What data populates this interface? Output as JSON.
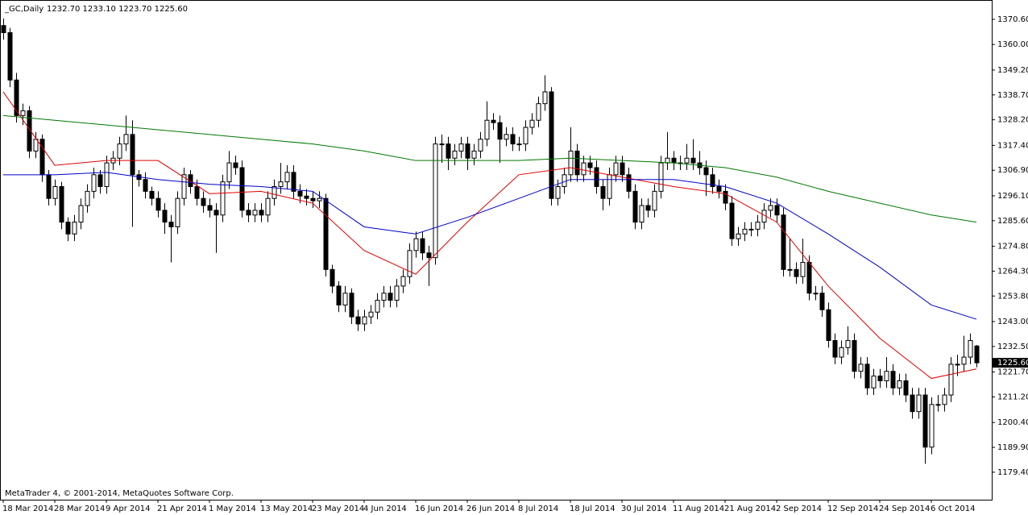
{
  "chart_data": {
    "type": "candlestick",
    "title": "_GC,Daily",
    "ohlc_label": "1232.70 1233.10 1223.70 1225.60",
    "footer": "MetaTrader 4, © 2001-2014, MetaQuotes Software Corp.",
    "last_price_label": "1225.60",
    "ylim": [
      1167.8,
      1378.1
    ],
    "yticks": [
      {
        "value": 1370.6,
        "label": "1370.60"
      },
      {
        "value": 1360.0,
        "label": "1360.00"
      },
      {
        "value": 1349.2,
        "label": "1349.20"
      },
      {
        "value": 1338.7,
        "label": "1338.70"
      },
      {
        "value": 1328.2,
        "label": "1328.20"
      },
      {
        "value": 1317.4,
        "label": "1317.40"
      },
      {
        "value": 1306.9,
        "label": "1306.90"
      },
      {
        "value": 1296.1,
        "label": "1296.10"
      },
      {
        "value": 1285.6,
        "label": "1285.60"
      },
      {
        "value": 1274.8,
        "label": "1274.80"
      },
      {
        "value": 1264.3,
        "label": "1264.30"
      },
      {
        "value": 1253.8,
        "label": "1253.80"
      },
      {
        "value": 1243.0,
        "label": "1243.00"
      },
      {
        "value": 1232.5,
        "label": "1232.50"
      },
      {
        "value": 1221.7,
        "label": "1221.70"
      },
      {
        "value": 1211.2,
        "label": "1211.20"
      },
      {
        "value": 1200.4,
        "label": "1200.40"
      },
      {
        "value": 1189.9,
        "label": "1189.90"
      },
      {
        "value": 1179.4,
        "label": "1179.40"
      }
    ],
    "categories": [
      "18 Mar 2014",
      null,
      null,
      null,
      null,
      null,
      null,
      null,
      "28 Mar 2014",
      null,
      null,
      null,
      null,
      null,
      null,
      null,
      "9 Apr 2014",
      null,
      null,
      null,
      null,
      null,
      null,
      null,
      "21 Apr 2014",
      null,
      null,
      null,
      null,
      null,
      null,
      null,
      "1 May 2014",
      null,
      null,
      null,
      null,
      null,
      null,
      null,
      "13 May 2014",
      null,
      null,
      null,
      null,
      null,
      null,
      null,
      "23 May 2014",
      null,
      null,
      null,
      null,
      null,
      null,
      null,
      "4 Jun 2014",
      null,
      null,
      null,
      null,
      null,
      null,
      null,
      "16 Jun 2014",
      null,
      null,
      null,
      null,
      null,
      null,
      null,
      "26 Jun 2014",
      null,
      null,
      null,
      null,
      null,
      null,
      null,
      "8 Jul 2014",
      null,
      null,
      null,
      null,
      null,
      null,
      null,
      "18 Jul 2014",
      null,
      null,
      null,
      null,
      null,
      null,
      null,
      "30 Jul 2014",
      null,
      null,
      null,
      null,
      null,
      null,
      null,
      "11 Aug 2014",
      null,
      null,
      null,
      null,
      null,
      null,
      null,
      "21 Aug 2014",
      null,
      null,
      null,
      null,
      null,
      null,
      null,
      "2 Sep 2014",
      null,
      null,
      null,
      null,
      null,
      null,
      null,
      "12 Sep 2014",
      null,
      null,
      null,
      null,
      null,
      null,
      null,
      "24 Sep 2014",
      null,
      null,
      null,
      null,
      null,
      null,
      null,
      "6 Oct 2014",
      null,
      null,
      null,
      null,
      null,
      null,
      null
    ],
    "candles": [
      [
        1368,
        1371,
        1362,
        1365
      ],
      [
        1365,
        1367,
        1342,
        1345
      ],
      [
        1345,
        1348,
        1327,
        1330
      ],
      [
        1330,
        1335,
        1326,
        1332
      ],
      [
        1332,
        1334,
        1312,
        1315
      ],
      [
        1315,
        1323,
        1312,
        1320
      ],
      [
        1320,
        1322,
        1302,
        1305
      ],
      [
        1305,
        1307,
        1292,
        1295
      ],
      [
        1295,
        1303,
        1292,
        1300
      ],
      [
        1300,
        1302,
        1282,
        1285
      ],
      [
        1285,
        1287,
        1277,
        1280
      ],
      [
        1280,
        1288,
        1277,
        1285
      ],
      [
        1285,
        1295,
        1282,
        1292
      ],
      [
        1292,
        1301,
        1289,
        1298
      ],
      [
        1298,
        1308,
        1295,
        1305
      ],
      [
        1305,
        1307,
        1297,
        1300
      ],
      [
        1300,
        1313,
        1297,
        1310
      ],
      [
        1310,
        1315,
        1307,
        1312
      ],
      [
        1312,
        1321,
        1309,
        1318
      ],
      [
        1318,
        1330,
        1315,
        1322
      ],
      [
        1322,
        1328,
        1283,
        1305
      ],
      [
        1305,
        1307,
        1300,
        1303
      ],
      [
        1303,
        1306,
        1295,
        1298
      ],
      [
        1298,
        1300,
        1292,
        1295
      ],
      [
        1295,
        1298,
        1287,
        1290
      ],
      [
        1290,
        1293,
        1280,
        1285
      ],
      [
        1285,
        1288,
        1268,
        1283
      ],
      [
        1283,
        1298,
        1280,
        1295
      ],
      [
        1295,
        1308,
        1292,
        1305
      ],
      [
        1305,
        1307,
        1297,
        1300
      ],
      [
        1300,
        1303,
        1292,
        1295
      ],
      [
        1295,
        1298,
        1289,
        1292
      ],
      [
        1292,
        1295,
        1287,
        1290
      ],
      [
        1290,
        1293,
        1272,
        1288
      ],
      [
        1288,
        1305,
        1285,
        1302
      ],
      [
        1302,
        1315,
        1299,
        1310
      ],
      [
        1310,
        1313,
        1305,
        1308
      ],
      [
        1308,
        1311,
        1287,
        1290
      ],
      [
        1290,
        1293,
        1285,
        1288
      ],
      [
        1288,
        1293,
        1285,
        1290
      ],
      [
        1290,
        1293,
        1285,
        1288
      ],
      [
        1288,
        1298,
        1285,
        1295
      ],
      [
        1295,
        1303,
        1292,
        1300
      ],
      [
        1300,
        1310,
        1297,
        1302
      ],
      [
        1302,
        1309,
        1299,
        1306
      ],
      [
        1306,
        1309,
        1295,
        1298
      ],
      [
        1298,
        1301,
        1293,
        1296
      ],
      [
        1296,
        1299,
        1292,
        1295
      ],
      [
        1295,
        1298,
        1291,
        1294
      ],
      [
        1294,
        1298,
        1291,
        1295
      ],
      [
        1295,
        1297,
        1262,
        1265
      ],
      [
        1265,
        1267,
        1255,
        1258
      ],
      [
        1258,
        1260,
        1247,
        1250
      ],
      [
        1250,
        1258,
        1247,
        1255
      ],
      [
        1255,
        1257,
        1242,
        1245
      ],
      [
        1245,
        1248,
        1239,
        1242
      ],
      [
        1242,
        1248,
        1239,
        1245
      ],
      [
        1245,
        1250,
        1242,
        1247
      ],
      [
        1247,
        1255,
        1244,
        1252
      ],
      [
        1252,
        1258,
        1249,
        1255
      ],
      [
        1255,
        1258,
        1249,
        1252
      ],
      [
        1252,
        1261,
        1249,
        1258
      ],
      [
        1258,
        1265,
        1255,
        1262
      ],
      [
        1262,
        1276,
        1259,
        1273
      ],
      [
        1273,
        1281,
        1270,
        1278
      ],
      [
        1278,
        1281,
        1269,
        1272
      ],
      [
        1272,
        1275,
        1258,
        1270
      ],
      [
        1270,
        1321,
        1267,
        1318
      ],
      [
        1318,
        1322,
        1310,
        1318
      ],
      [
        1318,
        1321,
        1307,
        1312
      ],
      [
        1312,
        1318,
        1309,
        1315
      ],
      [
        1315,
        1321,
        1312,
        1318
      ],
      [
        1318,
        1321,
        1307,
        1312
      ],
      [
        1312,
        1318,
        1309,
        1315
      ],
      [
        1315,
        1323,
        1312,
        1320
      ],
      [
        1320,
        1336,
        1317,
        1328
      ],
      [
        1328,
        1331,
        1324,
        1327
      ],
      [
        1327,
        1330,
        1310,
        1320
      ],
      [
        1320,
        1325,
        1317,
        1322
      ],
      [
        1322,
        1325,
        1315,
        1318
      ],
      [
        1318,
        1321,
        1315,
        1318
      ],
      [
        1318,
        1328,
        1315,
        1325
      ],
      [
        1325,
        1331,
        1322,
        1328
      ],
      [
        1328,
        1338,
        1325,
        1335
      ],
      [
        1335,
        1347,
        1332,
        1340
      ],
      [
        1340,
        1342,
        1292,
        1295
      ],
      [
        1295,
        1303,
        1292,
        1300
      ],
      [
        1300,
        1308,
        1297,
        1305
      ],
      [
        1305,
        1325,
        1302,
        1315
      ],
      [
        1315,
        1318,
        1302,
        1305
      ],
      [
        1305,
        1313,
        1302,
        1310
      ],
      [
        1310,
        1313,
        1305,
        1308
      ],
      [
        1308,
        1311,
        1297,
        1300
      ],
      [
        1300,
        1303,
        1290,
        1295
      ],
      [
        1295,
        1308,
        1292,
        1305
      ],
      [
        1305,
        1313,
        1302,
        1310
      ],
      [
        1310,
        1313,
        1302,
        1305
      ],
      [
        1305,
        1308,
        1295,
        1298
      ],
      [
        1298,
        1301,
        1282,
        1285
      ],
      [
        1285,
        1295,
        1282,
        1292
      ],
      [
        1292,
        1295,
        1287,
        1290
      ],
      [
        1290,
        1301,
        1287,
        1298
      ],
      [
        1298,
        1313,
        1295,
        1310
      ],
      [
        1310,
        1323,
        1307,
        1312
      ],
      [
        1312,
        1315,
        1307,
        1310
      ],
      [
        1310,
        1313,
        1307,
        1310
      ],
      [
        1310,
        1318,
        1307,
        1312
      ],
      [
        1312,
        1320,
        1307,
        1310
      ],
      [
        1310,
        1315,
        1305,
        1308
      ],
      [
        1308,
        1311,
        1296,
        1305
      ],
      [
        1305,
        1308,
        1297,
        1300
      ],
      [
        1300,
        1303,
        1295,
        1298
      ],
      [
        1298,
        1301,
        1290,
        1293
      ],
      [
        1293,
        1296,
        1275,
        1278
      ],
      [
        1278,
        1283,
        1275,
        1280
      ],
      [
        1280,
        1285,
        1277,
        1282
      ],
      [
        1282,
        1285,
        1279,
        1282
      ],
      [
        1282,
        1288,
        1279,
        1285
      ],
      [
        1285,
        1293,
        1282,
        1290
      ],
      [
        1290,
        1295,
        1287,
        1292
      ],
      [
        1292,
        1295,
        1285,
        1288
      ],
      [
        1288,
        1291,
        1262,
        1265
      ],
      [
        1265,
        1278,
        1262,
        1265
      ],
      [
        1265,
        1268,
        1259,
        1262
      ],
      [
        1262,
        1278,
        1259,
        1268
      ],
      [
        1268,
        1271,
        1252,
        1255
      ],
      [
        1255,
        1258,
        1252,
        1255
      ],
      [
        1255,
        1258,
        1245,
        1248
      ],
      [
        1248,
        1251,
        1232,
        1235
      ],
      [
        1235,
        1238,
        1225,
        1228
      ],
      [
        1228,
        1235,
        1225,
        1232
      ],
      [
        1232,
        1241,
        1229,
        1235
      ],
      [
        1235,
        1238,
        1219,
        1222
      ],
      [
        1222,
        1228,
        1219,
        1225
      ],
      [
        1225,
        1228,
        1212,
        1215
      ],
      [
        1215,
        1223,
        1212,
        1220
      ],
      [
        1220,
        1223,
        1215,
        1218
      ],
      [
        1218,
        1228,
        1215,
        1222
      ],
      [
        1222,
        1225,
        1212,
        1215
      ],
      [
        1215,
        1221,
        1212,
        1218
      ],
      [
        1218,
        1221,
        1209,
        1212
      ],
      [
        1212,
        1215,
        1202,
        1205
      ],
      [
        1205,
        1215,
        1202,
        1212
      ],
      [
        1212,
        1215,
        1183,
        1190
      ],
      [
        1190,
        1211,
        1187,
        1208
      ],
      [
        1208,
        1212,
        1205,
        1208
      ],
      [
        1208,
        1215,
        1205,
        1212
      ],
      [
        1212,
        1228,
        1209,
        1225
      ],
      [
        1225,
        1229,
        1220,
        1225
      ],
      [
        1225,
        1237,
        1222,
        1228
      ],
      [
        1228,
        1238,
        1225,
        1235
      ],
      [
        1232.7,
        1233.1,
        1223.7,
        1225.6
      ]
    ],
    "up_color": "#ffffff",
    "down_color": "#000000",
    "series": [
      {
        "color": "#e00000",
        "x": [
          0,
          8,
          16,
          24,
          32,
          40,
          48,
          56,
          64,
          72,
          80,
          88,
          96,
          104,
          112,
          120,
          128,
          136,
          144,
          151
        ],
        "values": [
          1340,
          1309,
          1311,
          1311,
          1297,
          1298,
          1293,
          1273,
          1263,
          1285,
          1305,
          1308,
          1304,
          1300,
          1297,
          1285,
          1258,
          1236,
          1219,
          1223
        ]
      },
      {
        "color": "#0000c8",
        "x": [
          0,
          8,
          16,
          24,
          32,
          40,
          48,
          56,
          64,
          72,
          80,
          88,
          96,
          104,
          112,
          120,
          128,
          136,
          144,
          151
        ],
        "values": [
          1305,
          1305,
          1306,
          1303,
          1301,
          1300,
          1298,
          1283,
          1280,
          1287,
          1295,
          1303,
          1303,
          1303,
          1300,
          1293,
          1280,
          1266,
          1250,
          1244
        ]
      },
      {
        "color": "#007800",
        "x": [
          0,
          8,
          16,
          24,
          32,
          40,
          48,
          56,
          64,
          72,
          80,
          88,
          96,
          104,
          112,
          120,
          128,
          136,
          144,
          151
        ],
        "values": [
          1330,
          1328,
          1326,
          1324,
          1322,
          1320,
          1318,
          1315,
          1311,
          1311,
          1311,
          1312,
          1311,
          1310,
          1308,
          1304,
          1298,
          1293,
          1288,
          1285
        ]
      }
    ]
  }
}
